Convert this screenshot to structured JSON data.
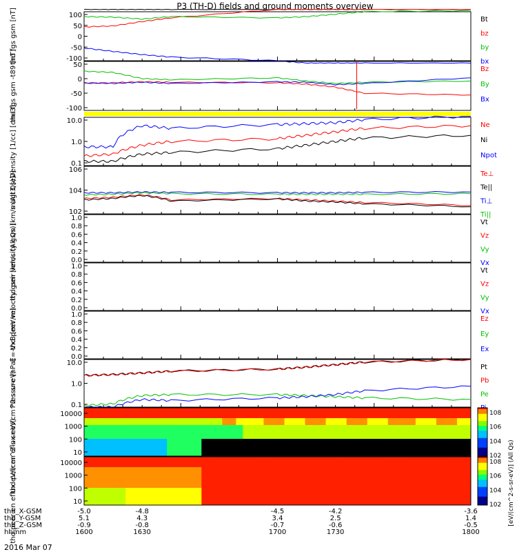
{
  "title": "P3 (TH-D) fields and ground moments overview",
  "footer_date": "2016 Mar 07",
  "x_rows": [
    {
      "label": "thd_X-GSM",
      "values": [
        "-5.0",
        "-4.8",
        "-4.5",
        "-4.2",
        "-3.6"
      ]
    },
    {
      "label": "thd_Y-GSM",
      "values": [
        "5.1",
        "4.3",
        "3.4",
        "2.5",
        "1.4"
      ]
    },
    {
      "label": "thd_Z-GSM",
      "values": [
        "-0.9",
        "-0.8",
        "-0.7",
        "-0.6",
        "-0.5"
      ]
    },
    {
      "label": "hhmm",
      "values": [
        "1600",
        "1630",
        "1700",
        "1730",
        "1800"
      ]
    }
  ],
  "colorbar": {
    "label": "[eV/(cm^2-s-sr-eV)] (All Qs)",
    "ticks_top": [
      "10^8",
      "10^6",
      "10^4",
      "10^2"
    ],
    "ticks_bottom": [
      "10^8",
      "10^6",
      "10^4",
      "10^2"
    ]
  },
  "chart_data": [
    {
      "type": "line",
      "panel": "fgs_gsm",
      "ylabel": "thd fgs gsm [nT]",
      "ylim": [
        -100,
        100
      ],
      "yticks": [
        "100",
        "50",
        "0",
        "-50",
        "-100"
      ],
      "legend": [
        "Bt",
        "bz",
        "by",
        "bx"
      ],
      "colors": [
        "#000000",
        "#ff0000",
        "#00c000",
        "#0000ff"
      ],
      "x": [
        1600,
        1615,
        1630,
        1645,
        1700,
        1715,
        1730,
        1745,
        1800
      ],
      "series": [
        {
          "name": "Bt",
          "values": [
            110,
            110,
            110,
            110,
            110,
            110,
            110,
            110,
            110
          ]
        },
        {
          "name": "bz",
          "values": [
            38,
            42,
            60,
            75,
            110,
            110,
            110,
            110,
            110
          ]
        },
        {
          "name": "by",
          "values": [
            80,
            78,
            70,
            80,
            75,
            80,
            90,
            100,
            105
          ]
        },
        {
          "name": "bx",
          "values": [
            -48,
            -62,
            -75,
            -85,
            -100,
            -110,
            -110,
            -110,
            -110
          ]
        }
      ]
    },
    {
      "type": "line",
      "panel": "fgs_gsm_t89",
      "ylabel": "thd fgs gsm -t89 [nT]",
      "ylim": [
        -125,
        75
      ],
      "yticks": [
        "50",
        "0",
        "-50",
        "-100"
      ],
      "legend": [
        "Bz",
        "By",
        "Bx"
      ],
      "colors": [
        "#ff0000",
        "#00c000",
        "#0000ff"
      ],
      "x": [
        1600,
        1615,
        1630,
        1645,
        1700,
        1715,
        1730,
        1745,
        1800
      ],
      "series": [
        {
          "name": "Bz",
          "values": [
            -15,
            -12,
            -8,
            -10,
            -12,
            -18,
            -30,
            -55,
            -62
          ]
        },
        {
          "name": "By",
          "values": [
            35,
            30,
            5,
            0,
            8,
            -5,
            -15,
            -10,
            -5
          ]
        },
        {
          "name": "Bx",
          "values": [
            -12,
            -15,
            -10,
            -15,
            -8,
            -10,
            -20,
            -15,
            8
          ]
        }
      ]
    },
    {
      "type": "line",
      "panel": "density",
      "scale": "log",
      "ylabel": "Density [1/cc] [cm-3]",
      "ylim": [
        0.1,
        10
      ],
      "yticks": [
        "10.0",
        "1.0",
        "0.1"
      ],
      "legend": [
        "Ne",
        "Ni",
        "Npot"
      ],
      "colors": [
        "#ff0000",
        "#000000",
        "#0000ff"
      ],
      "x": [
        1600,
        1615,
        1630,
        1645,
        1700,
        1715,
        1730,
        1745,
        1800
      ],
      "series": [
        {
          "name": "Ne",
          "values": [
            0.25,
            0.3,
            0.7,
            1.0,
            1.3,
            1.8,
            2.5,
            3.5,
            4.5
          ]
        },
        {
          "name": "Ni",
          "values": [
            0.15,
            0.15,
            0.3,
            0.35,
            0.5,
            0.7,
            1.0,
            1.4,
            1.8
          ]
        },
        {
          "name": "Npot",
          "values": [
            0.6,
            0.6,
            4.5,
            3.5,
            5.0,
            5.5,
            6.0,
            8.0,
            11.0
          ]
        }
      ]
    },
    {
      "type": "line",
      "panel": "temperature",
      "scale": "log",
      "ylabel": "magt3 [eV]",
      "ylim": [
        100,
        1000000
      ],
      "yticks": [
        "10^6",
        "10^4",
        "10^2"
      ],
      "legend": [
        "Te⊥",
        "Te||",
        "Ti⊥",
        "Ti||"
      ],
      "colors": [
        "#ff0000",
        "#000000",
        "#0000ff",
        "#00c000"
      ],
      "x": [
        1600,
        1615,
        1630,
        1645,
        1700,
        1715,
        1730,
        1745,
        1800
      ],
      "series": [
        {
          "name": "Te⊥",
          "values": [
            2000,
            2500,
            4000,
            1500,
            2000,
            1500,
            1200,
            900,
            500
          ]
        },
        {
          "name": "Te||",
          "values": [
            1500,
            2000,
            3500,
            1200,
            1800,
            1200,
            1000,
            700,
            400
          ]
        },
        {
          "name": "Ti⊥",
          "values": [
            6000,
            6000,
            7000,
            6500,
            6000,
            6000,
            6000,
            6500,
            7000
          ]
        },
        {
          "name": "Ti||",
          "values": [
            4000,
            4500,
            6000,
            5000,
            4500,
            4500,
            4500,
            4500,
            5000
          ]
        }
      ]
    },
    {
      "type": "line",
      "panel": "peir_velocity",
      "ylabel": "thd peir velocity gsm [km/s (All Qs)]",
      "ylim": [
        0,
        1
      ],
      "yticks": [
        "1.0",
        "0.8",
        "0.6",
        "0.4",
        "0.2",
        "0.0"
      ],
      "legend": [
        "Vt",
        "Vz",
        "Vy",
        "Vx"
      ],
      "colors": [
        "#000000",
        "#ff0000",
        "#00c000",
        "#0000ff"
      ],
      "series": []
    },
    {
      "type": "line",
      "panel": "peer_velocity",
      "ylabel": "thd peer velocity gsm [km/s (All Qs)]",
      "ylim": [
        0,
        1
      ],
      "yticks": [
        "1.0",
        "0.8",
        "0.6",
        "0.4",
        "0.2",
        "0.0"
      ],
      "legend": [
        "Vt",
        "Vz",
        "Vy",
        "Vx"
      ],
      "colors": [
        "#000000",
        "#ff0000",
        "#00c000",
        "#0000ff"
      ],
      "series": []
    },
    {
      "type": "line",
      "panel": "e_field",
      "ylabel": "E=-VxB [mV/m]",
      "ylim": [
        0,
        1
      ],
      "yticks": [
        "1.0",
        "0.8",
        "0.6",
        "0.4",
        "0.2",
        "0.0"
      ],
      "legend": [
        "Ez",
        "Ey",
        "Ex"
      ],
      "colors": [
        "#ff0000",
        "#00c000",
        "#0000ff"
      ],
      "series": []
    },
    {
      "type": "line",
      "panel": "pressure",
      "scale": "log",
      "ylabel": "Pressure [nPa]",
      "ylim": [
        0.1,
        30
      ],
      "yticks": [
        "10.0",
        "1.0",
        "0.1"
      ],
      "legend": [
        "Pt",
        "Pb",
        "Pe",
        "Pi"
      ],
      "colors": [
        "#000000",
        "#ff0000",
        "#00c000",
        "#0000ff"
      ],
      "x": [
        1600,
        1615,
        1630,
        1645,
        1700,
        1715,
        1730,
        1745,
        1800
      ],
      "series": [
        {
          "name": "Pt",
          "values": [
            4.5,
            5.0,
            6.0,
            7.5,
            9.5,
            12,
            16,
            22,
            30
          ]
        },
        {
          "name": "Pb",
          "values": [
            4.4,
            4.9,
            5.9,
            7.4,
            9.4,
            12,
            16,
            22,
            30
          ]
        },
        {
          "name": "Pe",
          "values": [
            0.12,
            0.15,
            0.4,
            0.45,
            0.45,
            0.4,
            0.35,
            0.3,
            0.25
          ]
        },
        {
          "name": "Pi",
          "values": [
            0.1,
            0.1,
            0.25,
            0.22,
            0.3,
            0.35,
            0.45,
            0.7,
            1.2
          ]
        }
      ]
    },
    {
      "type": "heatmap",
      "panel": "peir_eflux",
      "ylabel": "thd peir en eflux eV/(cm^2-s-sr-eV)",
      "yticks": [
        "10000",
        "1000",
        "100",
        "10"
      ],
      "ylim": [
        5,
        25000
      ],
      "description_levels": "log10 flux by time: 1600-1640 high-energy ~7, low-energy ~5, black fill from 1640 at low energies"
    },
    {
      "type": "heatmap",
      "panel": "peer_eflux",
      "ylabel": "thd peer en eflux eV/(cm^2-s-sr-eV)",
      "yticks": [
        "10000",
        "1000",
        "100",
        "10"
      ],
      "ylim": [
        5,
        25000
      ]
    }
  ]
}
